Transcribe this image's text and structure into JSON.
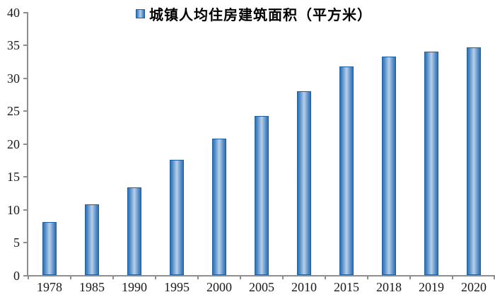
{
  "chart_data": {
    "type": "bar",
    "title": "",
    "legend_label": "城镇人均住房建筑面积（平方米）",
    "legend_position": "top-center",
    "categories": [
      "1978",
      "1985",
      "1990",
      "1995",
      "2000",
      "2005",
      "2010",
      "2015",
      "2018",
      "2019",
      "2020"
    ],
    "values": [
      8.1,
      10.8,
      13.4,
      17.6,
      20.8,
      24.3,
      28.0,
      31.8,
      33.3,
      34.0,
      34.7
    ],
    "xlabel": "",
    "ylabel": "",
    "ylim": [
      0,
      40
    ],
    "ytick_step": 5,
    "ytick_labels": [
      "0",
      "5",
      "10",
      "15",
      "20",
      "25",
      "30",
      "35",
      "40"
    ],
    "grid": false,
    "colors": {
      "bar_edge": "#1f5fa0",
      "bar_dark": "#2e74b8",
      "bar_light": "#b7cfe9",
      "axis": "#8e8e8e",
      "text": "#1a1a1a"
    }
  }
}
